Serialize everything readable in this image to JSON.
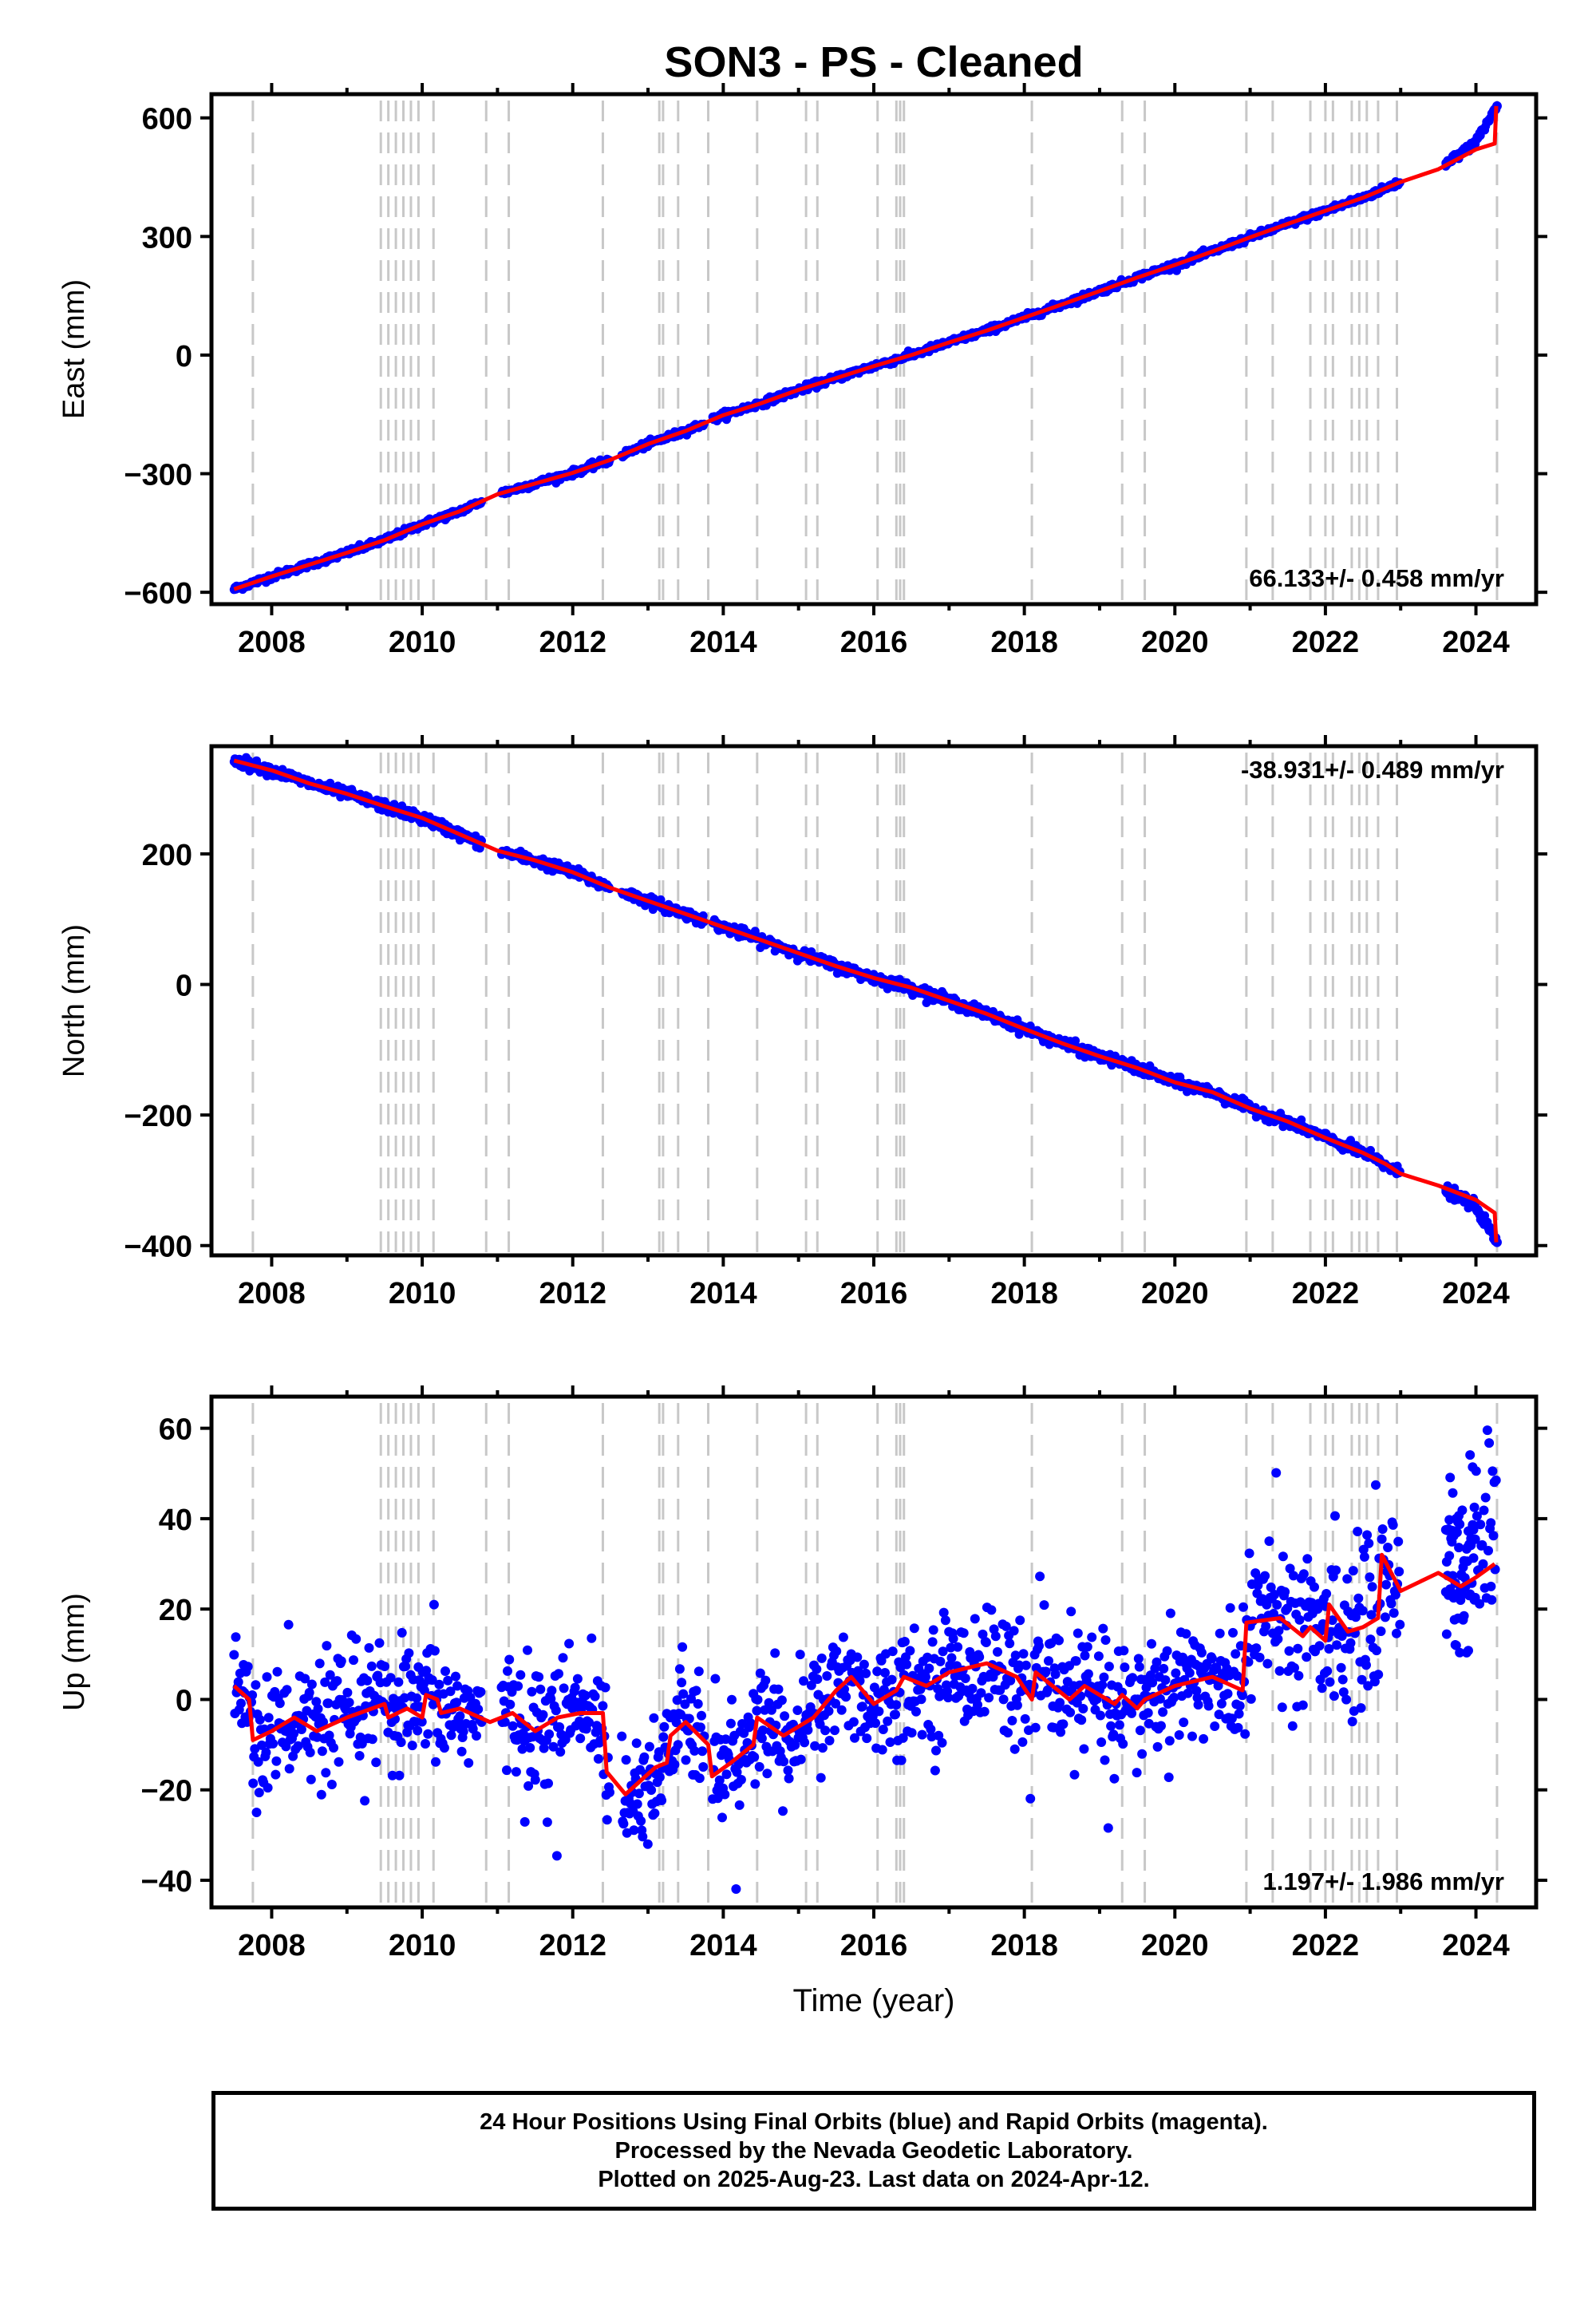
{
  "title": "SON3  - PS - Cleaned",
  "xlabel": "Time (year)",
  "footer": {
    "line1": "24 Hour Positions Using Final Orbits (blue) and Rapid Orbits (magenta).",
    "line2": "Processed by the Nevada Geodetic Laboratory.",
    "line3": "Plotted on 2025-Aug-23. Last data on 2024-Apr-12."
  },
  "colors": {
    "data": "#0000ff",
    "model": "#ff0000",
    "breaks": "#c8c8c8"
  },
  "chart_data": [
    {
      "type": "scatter",
      "component": "east",
      "ylabel": "East (mm)",
      "rate": "66.133+/- 0.458 mm/yr",
      "xlim": [
        2007.2,
        2024.8
      ],
      "ylim": [
        -630,
        660
      ],
      "yticks": [
        -600,
        -300,
        0,
        300,
        600
      ],
      "ytick_labels": [
        "−600",
        "−300",
        "0",
        "300",
        "600"
      ],
      "xticks": [
        2008,
        2010,
        2012,
        2014,
        2016,
        2018,
        2020,
        2022,
        2024
      ],
      "grid": false,
      "series": [
        {
          "kind": "points",
          "color": "blue",
          "x": [
            2007.5,
            2008.0,
            2008.5,
            2009.0,
            2009.5,
            2010.0,
            2010.5,
            2011.0,
            2011.5,
            2012.0,
            2012.5,
            2013.0,
            2013.5,
            2014.0,
            2014.5,
            2015.0,
            2015.5,
            2016.0,
            2016.5,
            2017.0,
            2017.5,
            2018.0,
            2018.5,
            2019.0,
            2019.5,
            2020.0,
            2020.5,
            2021.0,
            2021.5,
            2022.0,
            2022.5,
            2023.0,
            2023.5,
            2024.0,
            2024.28
          ],
          "y": [
            -592,
            -560,
            -530,
            -500,
            -468,
            -428,
            -395,
            -352,
            -325,
            -298,
            -265,
            -225,
            -192,
            -152,
            -122,
            -88,
            -58,
            -28,
            0,
            32,
            62,
            95,
            128,
            162,
            196,
            228,
            262,
            298,
            332,
            365,
            398,
            438,
            470,
            540,
            630
          ]
        },
        {
          "kind": "line",
          "color": "red",
          "x": [
            2007.5,
            2008.0,
            2008.5,
            2009.0,
            2009.5,
            2010.0,
            2010.5,
            2011.0,
            2011.5,
            2012.0,
            2012.5,
            2013.0,
            2013.5,
            2014.0,
            2014.5,
            2015.0,
            2015.5,
            2016.0,
            2016.5,
            2017.0,
            2017.5,
            2018.0,
            2018.5,
            2019.0,
            2019.5,
            2020.0,
            2020.5,
            2021.0,
            2021.5,
            2022.0,
            2022.5,
            2023.0,
            2023.5,
            2024.0,
            2024.25,
            2024.27
          ],
          "y": [
            -592,
            -560,
            -530,
            -500,
            -468,
            -428,
            -395,
            -352,
            -325,
            -298,
            -265,
            -225,
            -192,
            -152,
            -122,
            -88,
            -58,
            -28,
            0,
            32,
            62,
            95,
            128,
            162,
            196,
            228,
            262,
            298,
            332,
            365,
            398,
            438,
            470,
            520,
            535,
            630
          ]
        }
      ]
    },
    {
      "type": "scatter",
      "component": "north",
      "ylabel": "North (mm)",
      "rate": "-38.931+/- 0.489 mm/yr",
      "xlim": [
        2007.2,
        2024.8
      ],
      "ylim": [
        -415,
        365
      ],
      "yticks": [
        -400,
        -200,
        0,
        200
      ],
      "ytick_labels": [
        "−400",
        "−200",
        "0",
        "200"
      ],
      "xticks": [
        2008,
        2010,
        2012,
        2014,
        2016,
        2018,
        2020,
        2022,
        2024
      ],
      "grid": false,
      "series": [
        {
          "kind": "points",
          "color": "blue",
          "x": [
            2007.5,
            2008.0,
            2008.5,
            2009.0,
            2009.5,
            2010.0,
            2010.5,
            2011.0,
            2011.5,
            2012.0,
            2012.5,
            2013.0,
            2013.5,
            2014.0,
            2014.5,
            2015.0,
            2015.5,
            2016.0,
            2016.5,
            2017.0,
            2017.5,
            2018.0,
            2018.5,
            2019.0,
            2019.5,
            2020.0,
            2020.5,
            2021.0,
            2021.5,
            2022.0,
            2022.5,
            2023.0,
            2023.5,
            2024.0,
            2024.28
          ],
          "y": [
            343,
            328,
            308,
            292,
            273,
            255,
            230,
            205,
            190,
            172,
            148,
            128,
            108,
            88,
            68,
            48,
            28,
            10,
            -5,
            -25,
            -45,
            -68,
            -90,
            -110,
            -128,
            -150,
            -165,
            -190,
            -210,
            -235,
            -258,
            -290,
            -308,
            -340,
            -395
          ]
        },
        {
          "kind": "line",
          "color": "red",
          "x": [
            2007.5,
            2008.0,
            2008.5,
            2009.0,
            2009.5,
            2010.0,
            2010.5,
            2011.0,
            2011.5,
            2012.0,
            2012.5,
            2013.0,
            2013.5,
            2014.0,
            2014.5,
            2015.0,
            2015.5,
            2016.0,
            2016.5,
            2017.0,
            2017.5,
            2018.0,
            2018.5,
            2019.0,
            2019.5,
            2020.0,
            2020.5,
            2021.0,
            2021.5,
            2022.0,
            2022.5,
            2022.8,
            2023.0,
            2023.5,
            2024.0,
            2024.25,
            2024.27
          ],
          "y": [
            343,
            328,
            308,
            292,
            273,
            255,
            230,
            205,
            190,
            172,
            148,
            128,
            108,
            88,
            68,
            48,
            28,
            10,
            -5,
            -25,
            -45,
            -68,
            -90,
            -110,
            -128,
            -150,
            -165,
            -190,
            -210,
            -235,
            -258,
            -275,
            -290,
            -308,
            -330,
            -350,
            -395
          ]
        }
      ]
    },
    {
      "type": "scatter",
      "component": "up",
      "ylabel": "Up (mm)",
      "rate": "1.197+/- 1.986 mm/yr",
      "xlim": [
        2007.2,
        2024.8
      ],
      "ylim": [
        -46,
        67
      ],
      "yticks": [
        -40,
        -20,
        0,
        20,
        40,
        60
      ],
      "ytick_labels": [
        "−40",
        "−20",
        "0",
        "20",
        "40",
        "60"
      ],
      "xticks": [
        2008,
        2010,
        2012,
        2014,
        2016,
        2018,
        2020,
        2022,
        2024
      ],
      "grid": false,
      "series": [
        {
          "kind": "points",
          "color": "blue",
          "x": [
            2007.5,
            2007.7,
            2008.0,
            2008.3,
            2008.6,
            2009.0,
            2009.4,
            2009.8,
            2010.2,
            2010.5,
            2010.8,
            2011.3,
            2011.7,
            2012.1,
            2012.7,
            2013.0,
            2013.4,
            2013.7,
            2014.1,
            2014.5,
            2014.9,
            2015.3,
            2015.7,
            2016.1,
            2016.5,
            2016.9,
            2017.3,
            2017.7,
            2018.1,
            2018.5,
            2018.9,
            2019.3,
            2019.7,
            2020.1,
            2020.5,
            2020.9,
            2021.3,
            2021.7,
            2022.1,
            2022.5,
            2022.9,
            2023.2,
            2023.8,
            2024.0,
            2024.2
          ],
          "y": [
            2,
            -8,
            -6,
            -4,
            -7,
            -5,
            -3,
            -1,
            -2,
            -5,
            -3,
            -4,
            -6,
            -3,
            -20,
            -14,
            -6,
            -10,
            -12,
            -5,
            -8,
            3,
            0,
            -2,
            5,
            1,
            6,
            8,
            4,
            0,
            2,
            -3,
            0,
            -2,
            6,
            18,
            17,
            14,
            17,
            20,
            24,
            30,
            30,
            40,
            25
          ]
        },
        {
          "kind": "line",
          "color": "red",
          "x": [
            2007.5,
            2007.7,
            2007.75,
            2008.0,
            2008.3,
            2008.6,
            2009.0,
            2009.5,
            2009.55,
            2009.8,
            2010.0,
            2010.05,
            2010.2,
            2010.25,
            2010.5,
            2010.9,
            2011.2,
            2011.5,
            2011.8,
            2012.1,
            2012.4,
            2012.45,
            2012.7,
            2012.9,
            2013.1,
            2013.25,
            2013.3,
            2013.5,
            2013.8,
            2013.85,
            2014.1,
            2014.4,
            2014.45,
            2014.8,
            2015.2,
            2015.5,
            2015.7,
            2016.0,
            2016.3,
            2016.4,
            2016.7,
            2017.0,
            2017.5,
            2017.9,
            2018.1,
            2018.15,
            2018.6,
            2018.8,
            2019.2,
            2019.3,
            2019.5,
            2019.6,
            2020.0,
            2020.5,
            2020.9,
            2020.95,
            2021.4,
            2021.7,
            2021.8,
            2022.0,
            2022.05,
            2022.3,
            2022.5,
            2022.7,
            2022.75,
            2023.0,
            2023.5,
            2023.8,
            2024.0,
            2024.25
          ],
          "y": [
            3,
            0,
            -9,
            -7,
            -4,
            -7,
            -4,
            -1,
            -4,
            -2,
            -4,
            1,
            0,
            -3,
            -2,
            -5,
            -3,
            -7,
            -4,
            -3,
            -3,
            -16,
            -21,
            -18,
            -15,
            -14,
            -8,
            -5,
            -10,
            -17,
            -14,
            -10,
            -4,
            -8,
            -4,
            2,
            5,
            -1,
            2,
            5,
            3,
            6,
            8,
            5,
            0,
            6,
            0,
            3,
            -1,
            1,
            -2,
            0,
            3,
            5,
            2,
            17,
            18,
            14,
            16,
            13,
            21,
            15,
            16,
            18,
            32,
            24,
            28,
            25,
            27,
            30
          ]
        }
      ]
    }
  ],
  "breaks": [
    2007.75,
    2009.45,
    2009.55,
    2009.65,
    2009.75,
    2009.85,
    2009.95,
    2010.15,
    2010.85,
    2011.15,
    2012.4,
    2013.15,
    2013.2,
    2013.4,
    2013.8,
    2014.45,
    2015.1,
    2015.25,
    2016.05,
    2016.3,
    2016.35,
    2016.4,
    2018.1,
    2019.3,
    2019.6,
    2020.95,
    2021.3,
    2021.8,
    2022.0,
    2022.1,
    2022.35,
    2022.45,
    2022.55,
    2022.7,
    2022.95,
    2024.28
  ]
}
